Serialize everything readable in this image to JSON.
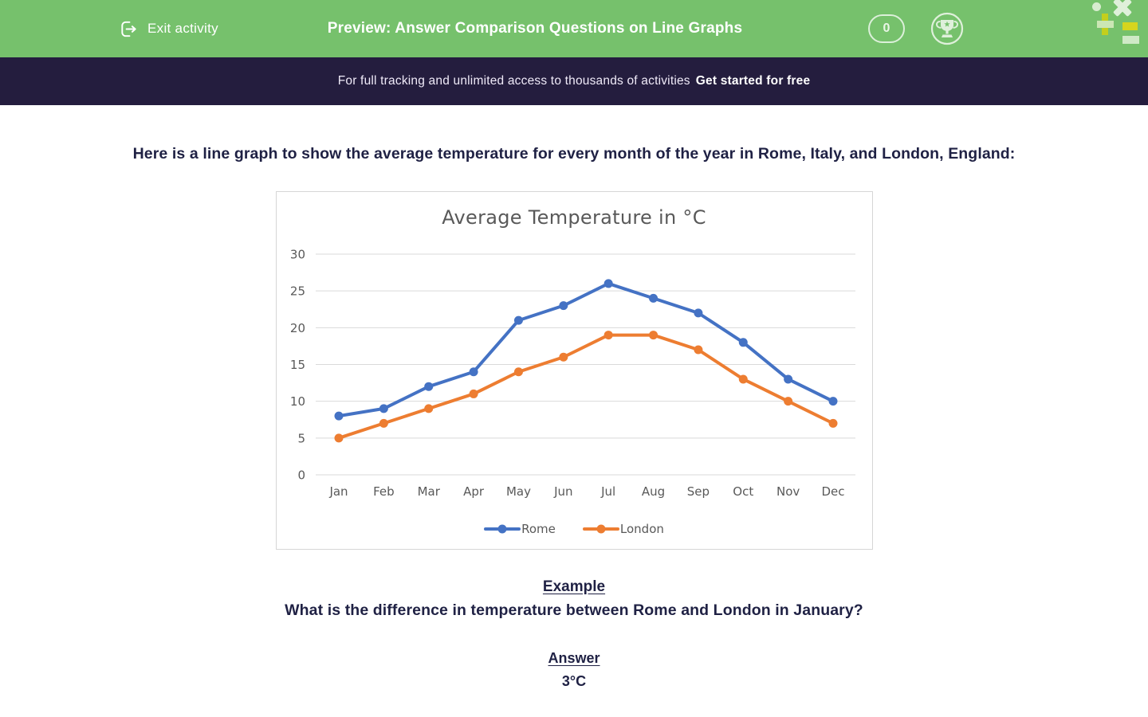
{
  "colors": {
    "green": "#76c16c",
    "dark": "#241d3e",
    "textdark": "#1f2144",
    "chartgray": "#595959",
    "grid": "#d9d9d9"
  },
  "header": {
    "exit_label": "Exit activity",
    "title": "Preview: Answer Comparison Questions on Line Graphs",
    "score": "0"
  },
  "icons": {
    "exit": "logout-door-arrow",
    "trophy": "trophy-in-circle",
    "logo": "maths-symbols-dot-times-plus-equals"
  },
  "banner": {
    "text": "For full tracking and unlimited access to thousands of activities",
    "cta": "Get started for free"
  },
  "intro": "Here is a line graph to show the average temperature for every month of the year in Rome, Italy, and London, England:",
  "chart_data": {
    "type": "line",
    "title": "Average Temperature in °C",
    "categories": [
      "Jan",
      "Feb",
      "Mar",
      "Apr",
      "May",
      "Jun",
      "Jul",
      "Aug",
      "Sep",
      "Oct",
      "Nov",
      "Dec"
    ],
    "series": [
      {
        "name": "Rome",
        "color": "#4472C4",
        "values": [
          8,
          9,
          12,
          14,
          21,
          23,
          26,
          24,
          22,
          18,
          13,
          10
        ]
      },
      {
        "name": "London",
        "color": "#ED7D31",
        "values": [
          5,
          7,
          9,
          11,
          14,
          16,
          19,
          19,
          17,
          13,
          10,
          7
        ]
      }
    ],
    "xlabel": "",
    "ylabel": "",
    "ylim": [
      0,
      30
    ],
    "ytick_step": 5,
    "grid": "horizontal-only",
    "legend_position": "bottom"
  },
  "example": {
    "heading": "Example",
    "question": "What is the difference in temperature between Rome and London in January?",
    "answer_heading": "Answer",
    "answer": "3°C"
  }
}
